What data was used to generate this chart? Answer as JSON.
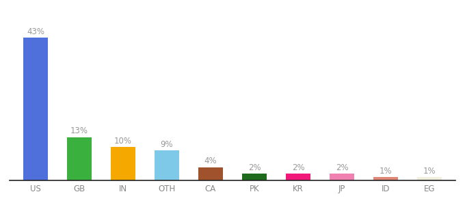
{
  "categories": [
    "US",
    "GB",
    "IN",
    "OTH",
    "CA",
    "PK",
    "KR",
    "JP",
    "ID",
    "EG"
  ],
  "values": [
    43,
    13,
    10,
    9,
    4,
    2,
    2,
    2,
    1,
    1
  ],
  "labels": [
    "43%",
    "13%",
    "10%",
    "9%",
    "4%",
    "2%",
    "2%",
    "2%",
    "1%",
    "1%"
  ],
  "bar_colors": [
    "#4f6fda",
    "#3ab03e",
    "#f5a800",
    "#7ec8e8",
    "#a0522d",
    "#1e6b1e",
    "#f01878",
    "#f080b0",
    "#e08878",
    "#f0eedc"
  ],
  "background_color": "#ffffff",
  "label_color": "#999999",
  "label_fontsize": 8.5,
  "tick_fontsize": 8.5,
  "tick_color": "#888888",
  "bar_width": 0.55,
  "ylim": [
    0,
    50
  ],
  "spine_color": "#222222"
}
